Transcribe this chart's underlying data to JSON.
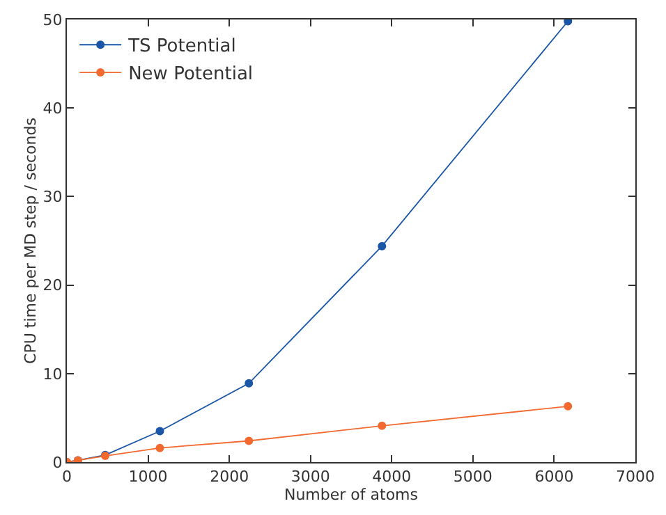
{
  "chart_data": {
    "type": "line",
    "xlabel": "Number of atoms",
    "ylabel": "CPU time per MD step / seconds",
    "x": [
      0,
      136,
      472,
      1145,
      2241,
      3880,
      6170
    ],
    "series": [
      {
        "name": "TS Potential",
        "color": "#1a56a8",
        "values": [
          0,
          0.2,
          0.8,
          3.5,
          8.9,
          24.4,
          49.8
        ]
      },
      {
        "name": "New Potential",
        "color": "#f26a30",
        "values": [
          0,
          0.2,
          0.7,
          1.6,
          2.4,
          4.1,
          6.3
        ]
      }
    ],
    "xlim": [
      0,
      7000
    ],
    "xticks": [
      0,
      1000,
      2000,
      3000,
      4000,
      5000,
      6000,
      7000
    ],
    "ylim": [
      0,
      50
    ],
    "yticks": [
      0,
      10,
      20,
      30,
      40,
      50
    ],
    "legend": "top left",
    "marker": "circle",
    "line_style": "solid"
  }
}
